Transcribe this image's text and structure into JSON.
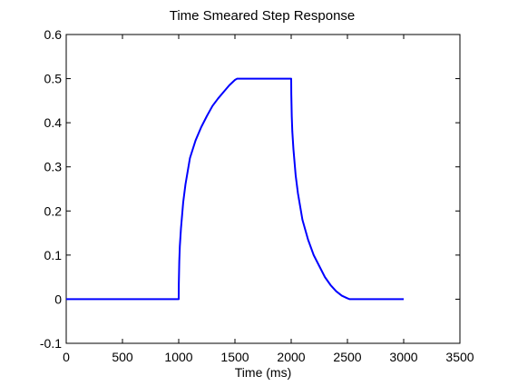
{
  "chart_data": {
    "type": "line",
    "title": "Time Smeared Step Response",
    "xlabel": "Time (ms)",
    "ylabel": "",
    "xlim": [
      0,
      3500
    ],
    "ylim": [
      -0.1,
      0.6
    ],
    "xticks": [
      0,
      500,
      1000,
      1500,
      2000,
      2500,
      3000,
      3500
    ],
    "xtick_labels": [
      "0",
      "500",
      "1000",
      "1500",
      "2000",
      "2500",
      "3000",
      "3500"
    ],
    "yticks": [
      -0.1,
      0,
      0.1,
      0.2,
      0.3,
      0.4,
      0.5,
      0.6
    ],
    "ytick_labels": [
      "-0.1",
      "0",
      "0.1",
      "0.2",
      "0.3",
      "0.4",
      "0.5",
      "0.6"
    ],
    "grid": false,
    "series": [
      {
        "color": "#0000ff",
        "x": [
          0,
          1000,
          1001,
          1005,
          1010,
          1020,
          1040,
          1060,
          1080,
          1100,
          1150,
          1200,
          1250,
          1300,
          1350,
          1400,
          1450,
          1500,
          1520,
          2000,
          2001,
          2005,
          2010,
          2020,
          2040,
          2060,
          2080,
          2100,
          2150,
          2200,
          2250,
          2300,
          2350,
          2400,
          2450,
          2500,
          2520,
          3000
        ],
        "y": [
          0,
          0,
          0.035,
          0.085,
          0.12,
          0.16,
          0.22,
          0.26,
          0.29,
          0.32,
          0.36,
          0.39,
          0.415,
          0.438,
          0.455,
          0.47,
          0.485,
          0.497,
          0.5,
          0.5,
          0.465,
          0.415,
          0.38,
          0.34,
          0.28,
          0.24,
          0.21,
          0.18,
          0.135,
          0.1,
          0.075,
          0.05,
          0.032,
          0.018,
          0.008,
          0.002,
          0,
          0
        ]
      }
    ]
  }
}
